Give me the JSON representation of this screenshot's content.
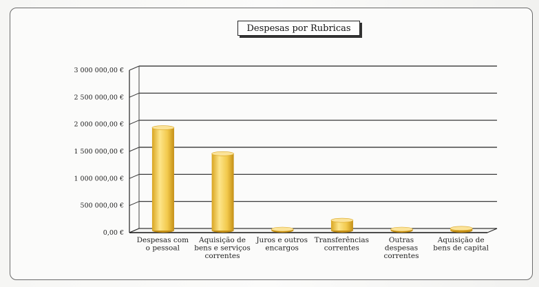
{
  "chart_data": {
    "type": "bar",
    "title": "Despesas por Rubricas",
    "categories": [
      [
        "Despesas com",
        "o pessoal"
      ],
      [
        "Aquisição de",
        "bens e serviços",
        "correntes"
      ],
      [
        "Juros e outros",
        "encargos"
      ],
      [
        "Transferências",
        "correntes"
      ],
      [
        "Outras",
        "despesas",
        "correntes"
      ],
      [
        "Aquisição de",
        "bens de capital"
      ]
    ],
    "values": [
      1900000,
      1420000,
      5000,
      190000,
      5000,
      40000
    ],
    "ylim": [
      0,
      3000000
    ],
    "yticks": [
      {
        "value": 0,
        "label": "0,00 €"
      },
      {
        "value": 500000,
        "label": "500 000,00 €"
      },
      {
        "value": 1000000,
        "label": "1 000 000,00 €"
      },
      {
        "value": 1500000,
        "label": "1 500 000,00 €"
      },
      {
        "value": 2000000,
        "label": "2 000 000,00 €"
      },
      {
        "value": 2500000,
        "label": "2 500 000,00 €"
      },
      {
        "value": 3000000,
        "label": "3 000 000,00 €"
      }
    ],
    "grid": true,
    "style": "3d-cylinder",
    "bar_color": "#f2c94c"
  }
}
